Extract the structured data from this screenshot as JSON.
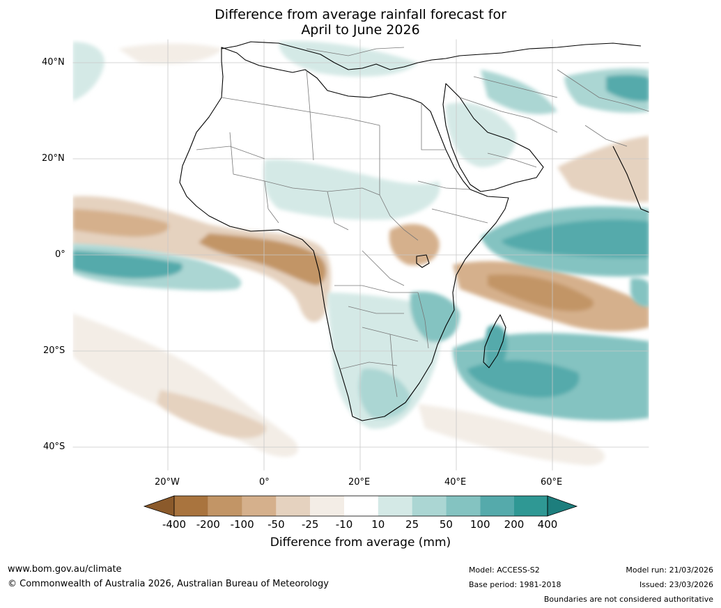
{
  "title_line1": "Difference from average rainfall forecast for",
  "title_line2": "April to June 2026",
  "lat_labels": [
    "40°N",
    "20°N",
    "0°",
    "20°S",
    "40°S"
  ],
  "lon_labels": [
    "20°W",
    "0°",
    "20°E",
    "40°E",
    "60°E"
  ],
  "colorbar": {
    "labels": [
      "-400",
      "-200",
      "-100",
      "-50",
      "-25",
      "-10",
      "10",
      "25",
      "50",
      "100",
      "200",
      "400"
    ],
    "colors": [
      "#8b5a2b",
      "#a9743e",
      "#c29566",
      "#d5b08c",
      "#e5d2bf",
      "#f3ede6",
      "#ffffff",
      "#d4e9e6",
      "#abd6d3",
      "#84c3c1",
      "#55aaab",
      "#2f9894",
      "#1d7e7d"
    ],
    "title": "Difference from average (mm)"
  },
  "footer": {
    "website": "www.bom.gov.au/climate",
    "copyright": "© Commonwealth of Australia 2026, Australian Bureau of Meteorology",
    "model": "Model: ACCESS-S2",
    "base_period": "Base period: 1981-2018",
    "model_run": "Model run: 21/03/2026",
    "issued": "Issued: 23/03/2026",
    "disclaimer": "Boundaries are not considered authoritative"
  }
}
